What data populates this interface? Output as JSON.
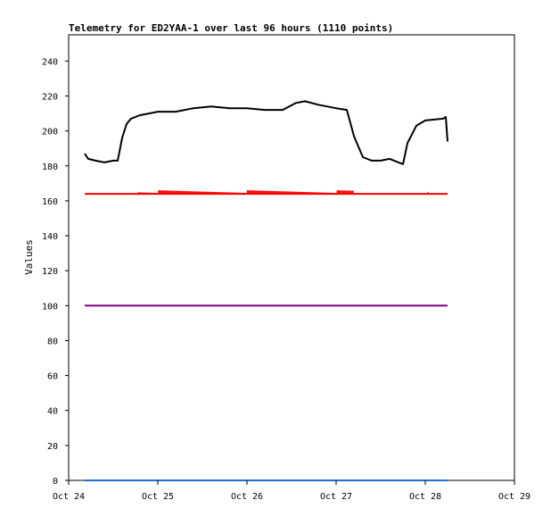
{
  "chart_data": {
    "type": "line",
    "title": "Telemetry for ED2YAA-1 over last 96 hours (1110 points)",
    "xlabel": "",
    "ylabel": "Values",
    "x_ticks": [
      "Oct 24",
      "Oct 25",
      "Oct 26",
      "Oct 27",
      "Oct 28",
      "Oct 29"
    ],
    "xlim": [
      "Oct 24",
      "Oct 29"
    ],
    "ylim": [
      0,
      255
    ],
    "y_ticks": [
      0,
      20,
      40,
      60,
      80,
      100,
      120,
      140,
      160,
      180,
      200,
      220,
      240
    ],
    "grid": false,
    "series": [
      {
        "color": "#000000",
        "x": [
          24.18,
          24.22,
          24.3,
          24.4,
          24.5,
          24.55,
          24.6,
          24.65,
          24.7,
          24.8,
          24.9,
          25.0,
          25.2,
          25.4,
          25.6,
          25.8,
          26.0,
          26.2,
          26.3,
          26.4,
          26.55,
          26.65,
          26.8,
          27.0,
          27.12,
          27.2,
          27.3,
          27.4,
          27.5,
          27.6,
          27.7,
          27.75,
          27.8,
          27.9,
          28.0,
          28.2,
          28.23,
          28.25
        ],
        "y": [
          187,
          184,
          183,
          182,
          183,
          183,
          196,
          204,
          207,
          209,
          210,
          211,
          211,
          213,
          214,
          213,
          213,
          212,
          212,
          212,
          216,
          217,
          215,
          213,
          212,
          197,
          185,
          183,
          183,
          184,
          182,
          181,
          193,
          203,
          206,
          207,
          208,
          194
        ]
      },
      {
        "color": "#ff0000",
        "x": [
          24.18,
          24.5,
          24.8,
          25.0,
          25.5,
          26.0,
          26.5,
          27.0,
          27.2,
          27.5,
          28.0,
          28.25
        ],
        "y": [
          164,
          164,
          164,
          164,
          164,
          164,
          164,
          164,
          164,
          164,
          164,
          164
        ]
      },
      {
        "color": "#7b0080",
        "x": [
          24.18,
          28.25
        ],
        "y": [
          100,
          100
        ]
      },
      {
        "color": "#1f6fd0",
        "x": [
          24.18,
          28.25
        ],
        "y": [
          0,
          0
        ]
      }
    ]
  }
}
